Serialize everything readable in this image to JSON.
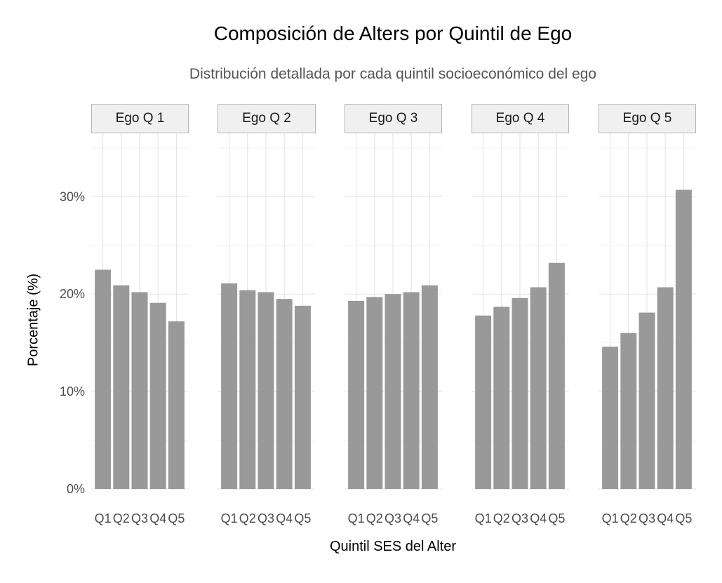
{
  "chart_data": {
    "type": "bar",
    "title": "Composición de Alters por Quintil de Ego",
    "subtitle": "Distribución detallada por cada quintil socioeconómico del ego",
    "xlabel": "Quintil SES del Alter",
    "ylabel": "Porcentaje (%)",
    "categories": [
      "Q1",
      "Q2",
      "Q3",
      "Q4",
      "Q5"
    ],
    "y_ticks": [
      0,
      10,
      20,
      30
    ],
    "y_tick_labels": [
      "0%",
      "10%",
      "20%",
      "30%"
    ],
    "ylim": [
      0,
      36.5
    ],
    "grid": true,
    "bar_color": "#999999",
    "facets": [
      {
        "label": "Ego Q 1",
        "values": [
          22.5,
          20.9,
          20.2,
          19.1,
          17.2
        ]
      },
      {
        "label": "Ego Q 2",
        "values": [
          21.1,
          20.4,
          20.2,
          19.5,
          18.8
        ]
      },
      {
        "label": "Ego Q 3",
        "values": [
          19.3,
          19.7,
          20.0,
          20.2,
          20.9
        ]
      },
      {
        "label": "Ego Q 4",
        "values": [
          17.8,
          18.7,
          19.6,
          20.7,
          23.2
        ]
      },
      {
        "label": "Ego Q 5",
        "values": [
          14.6,
          16.0,
          18.1,
          20.7,
          30.7
        ]
      }
    ]
  }
}
